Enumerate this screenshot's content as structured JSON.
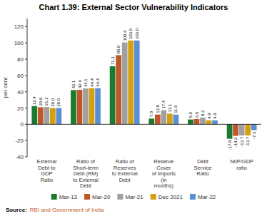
{
  "chart_data": {
    "type": "bar",
    "title": "Chart 1.39: External Sector Vulnerability Indicators",
    "categories": [
      "External\nDebt to\nGDP\nRatio",
      "Ratio of\nShort-term\nDebt (RM)\nto External\nDebt",
      "Ratio of\nReserves\nto External\nDebt",
      "Reserve\nCover\nof Imports\n(in\nmonths)",
      "Debt\nService\nRatio",
      "NIIP/GDP\nratio"
    ],
    "series": [
      {
        "name": "Mar-13",
        "color": "#1a7a2e",
        "values": [
          22.4,
          42.1,
          71.3,
          7.0,
          5.9,
          -17.8
        ],
        "value_labels": [
          "22.4",
          "42.1",
          "71.3",
          "7.0",
          "5.9",
          "-17.8"
        ]
      },
      {
        "name": "Mar-20",
        "color": "#c0572a",
        "values": [
          20.9,
          42.4,
          85.0,
          12.0,
          6.5,
          -14.2
        ],
        "value_labels": [
          "20.9",
          "42.4",
          "85.0",
          "12.0",
          "6.5",
          "-14.2"
        ]
      },
      {
        "name": "Mar-21",
        "color": "#a0a0a0",
        "values": [
          21.2,
          44.1,
          100.6,
          17.4,
          8.2,
          -13.7
        ],
        "value_labels": [
          "21.2",
          "44.1",
          "100.6",
          "17.4",
          "8.2",
          "-13.7"
        ]
      },
      {
        "name": "Dec 2021",
        "color": "#d4a010",
        "values": [
          20.0,
          44.4,
          103.0,
          13.1,
          4.9,
          -13.7
        ],
        "value_labels": [
          "20.0",
          "44.4",
          "103.0",
          "13.1",
          "4.9",
          "-13.7"
        ]
      },
      {
        "name": "Mar-22",
        "color": "#5b8fd4",
        "values": [
          20.0,
          44.4,
          103.0,
          11.9,
          4.9,
          -7.3
        ],
        "value_labels": [
          "20.0",
          "44.4",
          "103.0",
          "11.9",
          "4.9",
          "-7.3"
        ]
      }
    ],
    "ylabel": "per cent",
    "ylim": [
      -40,
      130
    ],
    "yticks": [
      -40,
      -20,
      0,
      20,
      40,
      60,
      80,
      100,
      120
    ],
    "grid": false,
    "data_labels": true,
    "legend": "bottom",
    "annotations": [
      "Source:",
      "RBI and Government of India"
    ]
  }
}
